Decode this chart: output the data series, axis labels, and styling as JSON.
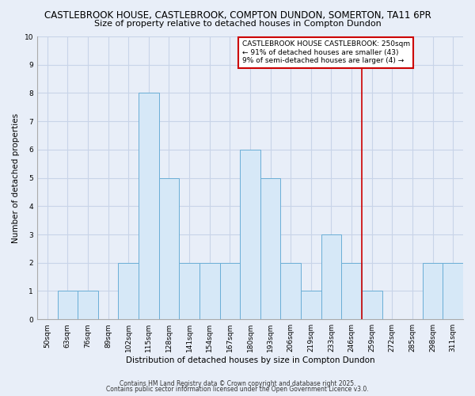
{
  "title1": "CASTLEBROOK HOUSE, CASTLEBROOK, COMPTON DUNDON, SOMERTON, TA11 6PR",
  "title2": "Size of property relative to detached houses in Compton Dundon",
  "xlabel": "Distribution of detached houses by size in Compton Dundon",
  "ylabel": "Number of detached properties",
  "categories": [
    "50sqm",
    "63sqm",
    "76sqm",
    "89sqm",
    "102sqm",
    "115sqm",
    "128sqm",
    "141sqm",
    "154sqm",
    "167sqm",
    "180sqm",
    "193sqm",
    "206sqm",
    "219sqm",
    "233sqm",
    "246sqm",
    "259sqm",
    "272sqm",
    "285sqm",
    "298sqm",
    "311sqm"
  ],
  "values": [
    0,
    1,
    1,
    0,
    2,
    8,
    5,
    2,
    2,
    2,
    6,
    5,
    2,
    1,
    3,
    2,
    1,
    0,
    0,
    2,
    2
  ],
  "bar_color": "#d6e8f7",
  "bar_edge_color": "#6aaed6",
  "vline_index": 15,
  "vline_color": "#cc0000",
  "annotation_text": "CASTLEBROOK HOUSE CASTLEBROOK: 250sqm\n← 91% of detached houses are smaller (43)\n9% of semi-detached houses are larger (4) →",
  "annotation_box_edge": "#cc0000",
  "annotation_box_face": "#ffffff",
  "ylim": [
    0,
    10
  ],
  "yticks": [
    0,
    1,
    2,
    3,
    4,
    5,
    6,
    7,
    8,
    9,
    10
  ],
  "grid_color": "#c8d4e8",
  "background_color": "#e8eef8",
  "footer1": "Contains HM Land Registry data © Crown copyright and database right 2025.",
  "footer2": "Contains public sector information licensed under the Open Government Licence v3.0.",
  "title_fontsize": 8.5,
  "subtitle_fontsize": 8,
  "axis_label_fontsize": 7.5,
  "tick_fontsize": 6.5,
  "annotation_fontsize": 6.5,
  "footer_fontsize": 5.5
}
